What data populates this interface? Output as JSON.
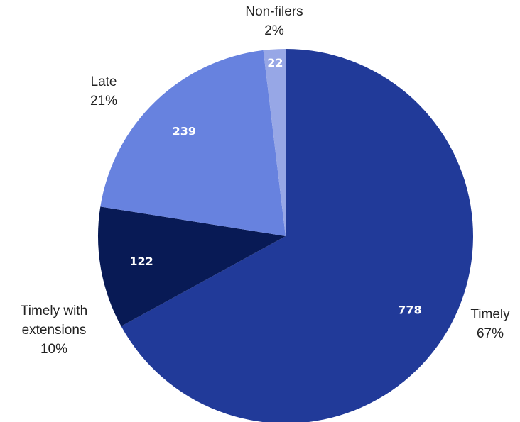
{
  "chart_data": {
    "type": "pie",
    "slices": [
      {
        "name": "Timely",
        "value": 778,
        "percent_label": "67%",
        "color": "#213a99"
      },
      {
        "name": "Timely with extensions",
        "value": 122,
        "percent_label": "10%",
        "color": "#081a55"
      },
      {
        "name": "Late",
        "value": 239,
        "percent_label": "21%",
        "color": "#6782df"
      },
      {
        "name": "Non-filers",
        "value": 22,
        "percent_label": "2%",
        "color": "#97a7e6"
      }
    ],
    "start_angle_deg": 0,
    "direction": "clockwise",
    "title": "",
    "legend": "none"
  }
}
